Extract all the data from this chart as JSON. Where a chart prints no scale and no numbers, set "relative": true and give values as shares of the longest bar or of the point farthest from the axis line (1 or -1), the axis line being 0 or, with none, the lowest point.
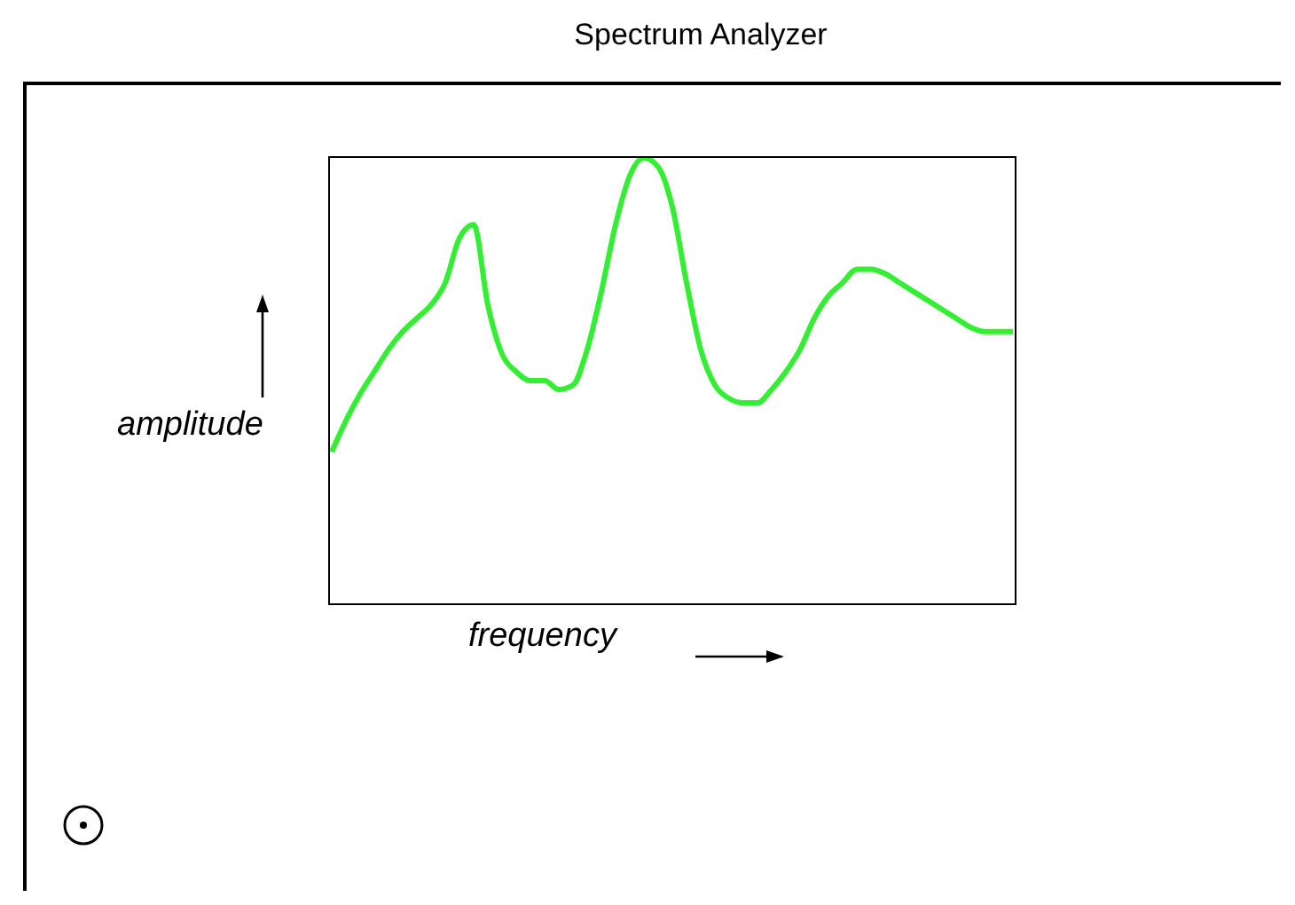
{
  "chart_data": {
    "type": "line",
    "title": "Spectrum Analyzer",
    "xlabel": "frequency",
    "ylabel": "amplitude",
    "relative": true,
    "categories": [
      null,
      null,
      null,
      null,
      null,
      null,
      null,
      null,
      null,
      null,
      null,
      null,
      null,
      null,
      null,
      null,
      null,
      null,
      null,
      null,
      null,
      null,
      null,
      null,
      null,
      null,
      null,
      null,
      null,
      null,
      null,
      null,
      null,
      null,
      null,
      null,
      null,
      null,
      null,
      null,
      null,
      null,
      null,
      null,
      null,
      null,
      null,
      null,
      null
    ],
    "series": [
      {
        "color": "#33ee33",
        "values": [
          0.34,
          0.41,
          0.47,
          0.52,
          0.57,
          0.61,
          0.64,
          0.67,
          0.72,
          0.82,
          0.85,
          0.67,
          0.56,
          0.52,
          0.5,
          0.5,
          0.48,
          0.49,
          0.57,
          0.7,
          0.85,
          0.96,
          1,
          0.98,
          0.89,
          0.72,
          0.57,
          0.49,
          0.46,
          0.45,
          0.45,
          0.48,
          0.52,
          0.57,
          0.64,
          0.69,
          0.72,
          0.75,
          0.75,
          0.74,
          0.72,
          0.7,
          0.68,
          0.66,
          0.64,
          0.62,
          0.61,
          0.61,
          0.61
        ]
      }
    ]
  }
}
